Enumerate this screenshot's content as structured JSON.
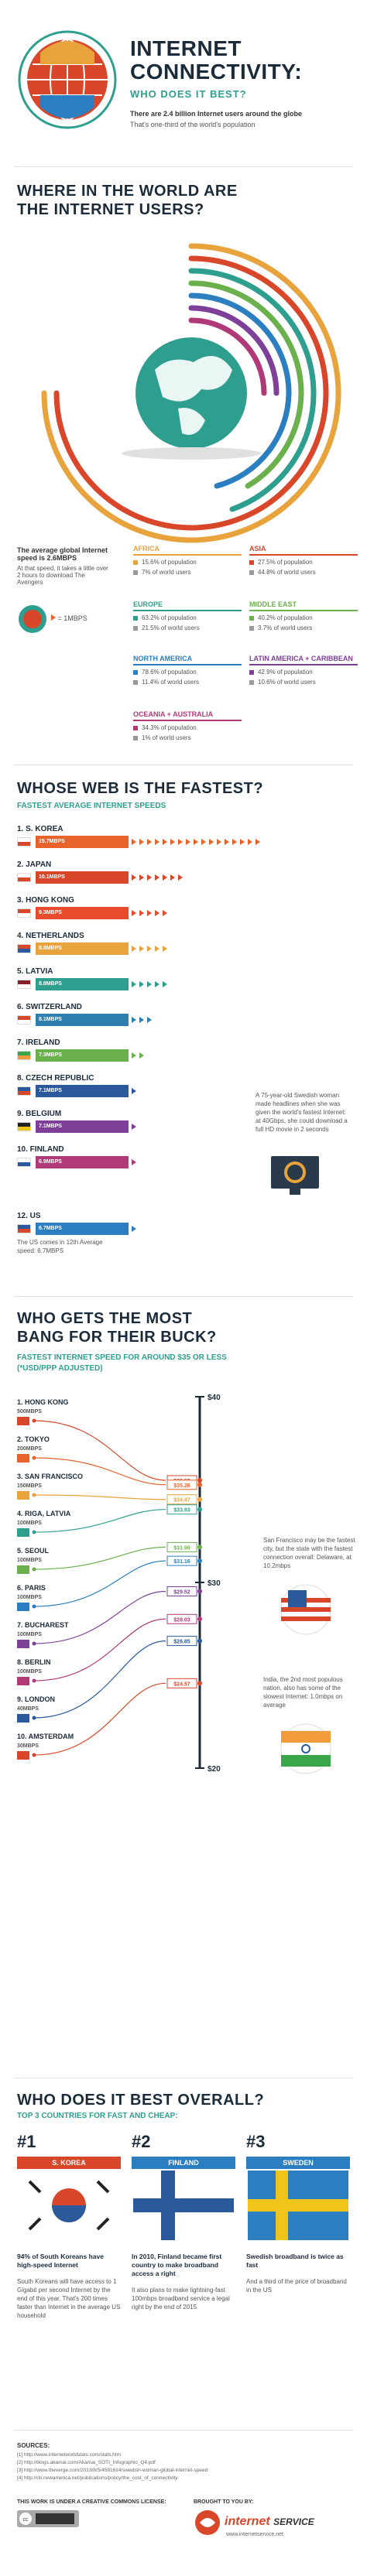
{
  "header": {
    "title_line1": "INTERNET",
    "title_line2": "CONNECTIVITY:",
    "subtitle": "WHO DOES IT BEST?",
    "stat_line": "There are 2.4 billion Internet users around the globe",
    "stat_sub": "That's one-third of the world's population"
  },
  "section1": {
    "title_line1": "WHERE IN THE WORLD ARE",
    "title_line2": "THE INTERNET USERS?",
    "speed_note": "The average global Internet speed is 2.6MBPS",
    "speed_desc": "At that speed, it takes a little over 2 hours to download The Avengers",
    "speed_equals": "= 1MBPS",
    "regions": [
      {
        "name": "AFRICA",
        "pct_pop": "15.6% of population",
        "pct_users": "7% of world users",
        "color": "#e8a33d"
      },
      {
        "name": "ASIA",
        "pct_pop": "27.5% of population",
        "pct_users": "44.8% of world users",
        "color": "#d9472b"
      },
      {
        "name": "EUROPE",
        "pct_pop": "63.2% of population",
        "pct_users": "21.5% of world users",
        "color": "#2e9f8f"
      },
      {
        "name": "MIDDLE EAST",
        "pct_pop": "40.2% of population",
        "pct_users": "3.7% of world users",
        "color": "#6ab04c"
      },
      {
        "name": "NORTH AMERICA",
        "pct_pop": "78.6% of population",
        "pct_users": "11.4% of world users",
        "color": "#2b7fc0"
      },
      {
        "name": "LATIN AMERICA + CARIBBEAN",
        "pct_pop": "42.9% of population",
        "pct_users": "10.6% of world users",
        "color": "#7e3f98"
      },
      {
        "name": "OCEANIA + AUSTRALIA",
        "pct_pop": "34.3% of population",
        "pct_users": "1% of world users",
        "color": "#b03a78"
      }
    ]
  },
  "section2": {
    "title": "WHOSE WEB IS THE FASTEST?",
    "subtitle": "FASTEST AVERAGE INTERNET SPEEDS",
    "swedish_note": "A 75-year-old Swedish woman made headlines when she was given the world's fastest Internet: at 40Gbps, she could download a full HD movie in 2 seconds",
    "us_note": "The US comes in 12th Average speed: 6.7MBPS"
  },
  "chart_data": [
    {
      "type": "bar",
      "title": "FASTEST AVERAGE INTERNET SPEEDS",
      "unit": "MBPS",
      "categories": [
        "1. S. KOREA",
        "2. JAPAN",
        "3. HONG KONG",
        "4. NETHERLANDS",
        "5. LATVIA",
        "6. SWITZERLAND",
        "7. IRELAND",
        "8. CZECH REPUBLIC",
        "9. BELGIUM",
        "10. FINLAND",
        "12. US"
      ],
      "values": [
        15.7,
        10.1,
        9.3,
        8.8,
        8.8,
        8.1,
        7.3,
        7.1,
        7.1,
        6.9,
        6.7
      ],
      "value_labels": [
        "15.7MBPS",
        "10.1MBPS",
        "9.3MBPS",
        "8.8MBPS",
        "8.8MBPS",
        "8.1MBPS",
        "7.3MBPS",
        "7.1MBPS",
        "7.1MBPS",
        "6.9MBPS",
        "6.7MBPS"
      ],
      "colors": [
        "#e8632b",
        "#d9472b",
        "#e84b2b",
        "#e8a33d",
        "#2e9f8f",
        "#2e7fb0",
        "#6ab04c",
        "#2b5a9c",
        "#7e3f98",
        "#b03a78",
        "#2b7fc0"
      ]
    },
    {
      "type": "scatter",
      "title": "FASTEST INTERNET SPEED FOR AROUND $35 OR LESS (*USD/PPP ADJUSTED)",
      "categories": [
        "1. HONG KONG",
        "2. TOKYO",
        "3. SAN FRANCISCO",
        "4. RIGA, LATVIA",
        "5. SEOUL",
        "6. PARIS",
        "7. BUCHAREST",
        "8. BERLIN",
        "9. LONDON",
        "10. AMSTERDAM"
      ],
      "speeds": [
        "500MBPS",
        "200MBPS",
        "150MBPS",
        "100MBPS",
        "100MBPS",
        "100MBPS",
        "100MBPS",
        "100MBPS",
        "40MBPS",
        "30MBPS"
      ],
      "prices": [
        35.5,
        35.26,
        34.47,
        33.93,
        31.9,
        31.16,
        29.52,
        28.03,
        26.85,
        24.57
      ],
      "price_labels": [
        "$35.50",
        "$35.26",
        "$34.47",
        "$33.93",
        "$31.90",
        "$31.16",
        "$29.52",
        "$28.03",
        "$26.85",
        "$24.57"
      ],
      "ylim": [
        20,
        40
      ],
      "ytick_labels": [
        "$40",
        "$30",
        "$20"
      ]
    }
  ],
  "section3": {
    "title_line1": "WHO GETS THE MOST",
    "title_line2": "BANG FOR THEIR BUCK?",
    "subtitle_line1": "FASTEST INTERNET SPEED FOR AROUND $35 OR LESS",
    "subtitle_line2": "(*USD/PPP ADJUSTED)",
    "sf_note": "San Francisco may be the fastest city, but the state with the fastest connection overall: Delaware, at 10.2mbps",
    "india_note": "India, the 2nd most populous nation, also has some of the slowest Internet: 1.0mbps on average"
  },
  "section4": {
    "title": "WHO DOES IT BEST OVERALL?",
    "subtitle": "TOP 3 COUNTRIES FOR FAST AND CHEAP:",
    "cards": [
      {
        "rank": "#1",
        "country": "S. KOREA",
        "headline": "94% of South Koreans have high-speed Internet",
        "body": "South Koreans will have access to 1 Gigabit per second Internet by the end of this year. That's 200 times faster than Internet in the average US household"
      },
      {
        "rank": "#2",
        "country": "FINLAND",
        "headline": "In 2010, Finland became first country to make broadband access a right",
        "body": "It also plans to make lightning-fast 100mbps broadband service a legal right by the end of 2015"
      },
      {
        "rank": "#3",
        "country": "SWEDEN",
        "headline": "Swedish broadband is twice as fast",
        "body": "And a third of the price of broadband in the US"
      }
    ]
  },
  "footer": {
    "sources_label": "SOURCES:",
    "sources": [
      "[1] http://www.internetworldstats.com/stats.htm",
      "[2] http://blogs.akamai.com/Akamai_SOTI_Infographic_Q4.pdf",
      "[3] http://www.theverge.com/2013/8/5/4591614/swedish-woman-global-internet-speed",
      "[4] http://oti.newamerica.net/publications/policy/the_cost_of_connectivity"
    ],
    "license": "THIS WORK IS UNDER A CREATIVE COMMONS LICENSE:",
    "brought_by": "BROUGHT TO YOU BY:",
    "brand_a": "internet",
    "brand_b": "SERVICE",
    "url": "www.internetservice.net"
  }
}
